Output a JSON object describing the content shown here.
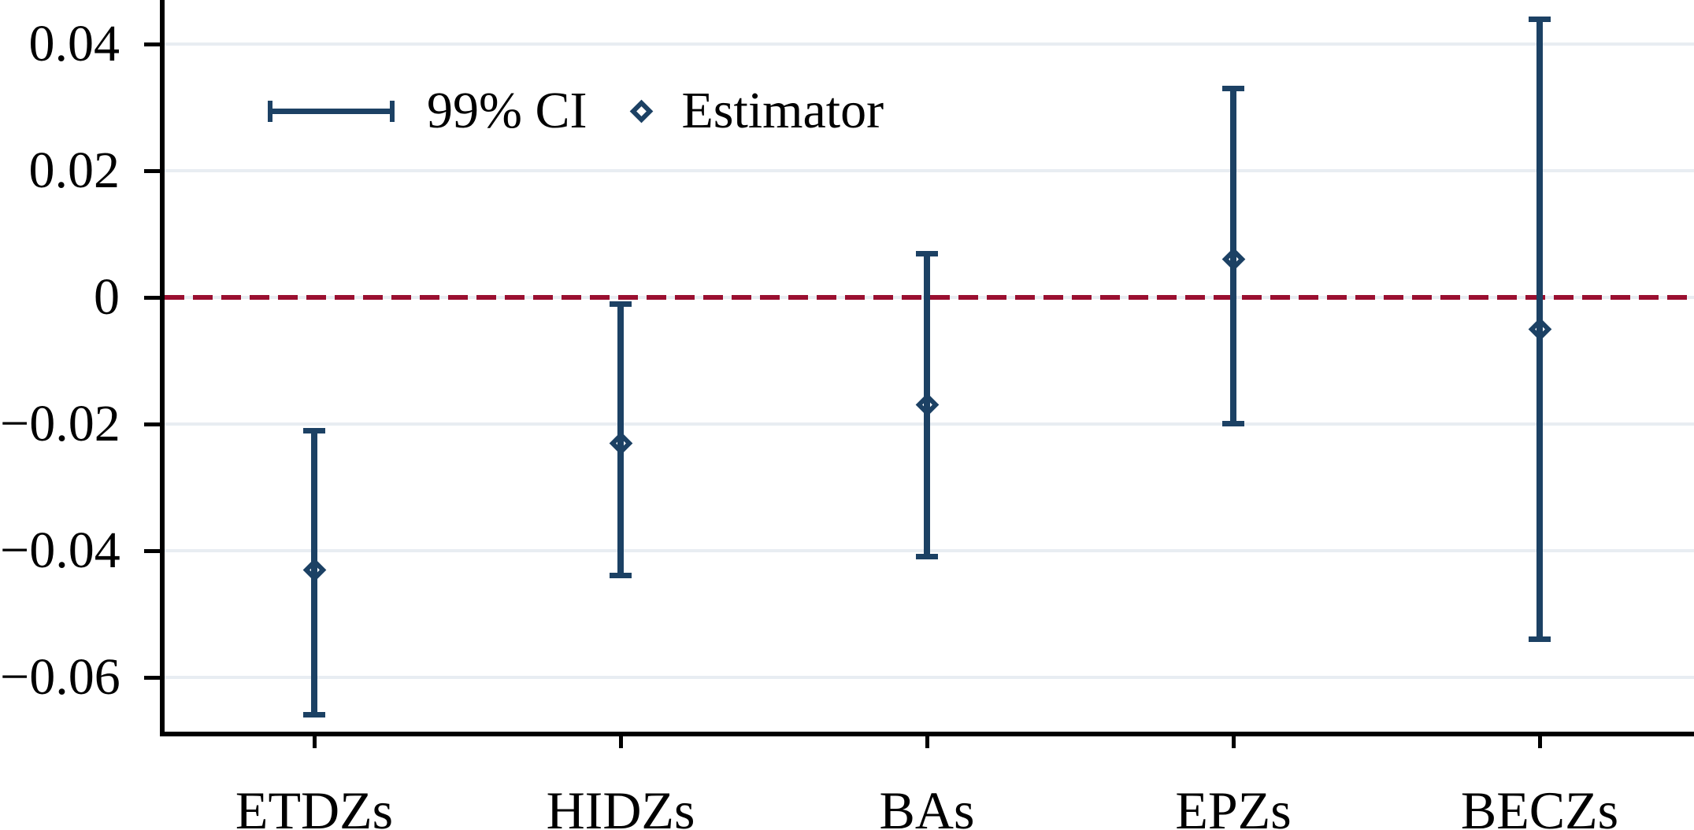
{
  "legend": {
    "ci_label": "99% CI",
    "estimator_label": "Estimator"
  },
  "colors": {
    "marker_navy": "#1c4164",
    "zero_line_crimson": "#9a0f30",
    "gridline": "#e8edf2",
    "axis": "#000000",
    "text": "#000000",
    "background": "#ffffff"
  },
  "y_axis": {
    "tick_values": [
      0.04,
      0.02,
      0,
      -0.02,
      -0.04,
      -0.06
    ],
    "tick_labels": [
      "0.04",
      "0.02",
      "0",
      "−0.02",
      "−0.04",
      "−0.06"
    ]
  },
  "chart_data": {
    "type": "errorbar",
    "categories": [
      "ETDZs",
      "HIDZs",
      "BAs",
      "EPZs",
      "BECZs"
    ],
    "series": [
      {
        "name": "Estimator",
        "values": [
          -0.043,
          -0.023,
          -0.017,
          0.006,
          -0.005
        ]
      },
      {
        "name": "99% CI upper",
        "values": [
          -0.021,
          -0.001,
          0.007,
          0.033,
          0.044
        ]
      },
      {
        "name": "99% CI lower",
        "values": [
          -0.066,
          -0.044,
          -0.041,
          -0.02,
          -0.054
        ]
      }
    ],
    "title": "",
    "xlabel": "",
    "ylabel": "",
    "ylim": [
      -0.069,
      0.047
    ],
    "grid": true,
    "zero_reference_line": 0,
    "legend_position": "top-left-inside",
    "legend_entries": [
      "99% CI",
      "Estimator"
    ]
  }
}
